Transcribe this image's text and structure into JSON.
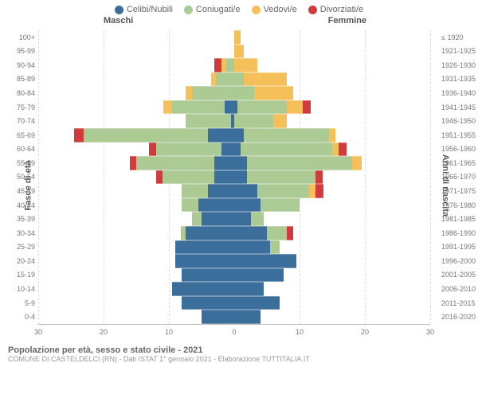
{
  "legend": [
    {
      "label": "Celibi/Nubili",
      "color": "#3b6e9a"
    },
    {
      "label": "Coniugati/e",
      "color": "#accb94"
    },
    {
      "label": "Vedovi/e",
      "color": "#f5c05a"
    },
    {
      "label": "Divorziati/e",
      "color": "#d13b3b"
    }
  ],
  "gender": {
    "male": "Maschi",
    "female": "Femmine"
  },
  "axes": {
    "left_title": "Fasce di età",
    "right_title": "Anni di nascita",
    "xmax": 30,
    "xticks": [
      30,
      20,
      10,
      0,
      10,
      20,
      30
    ],
    "grid_dashed_color": "#dddddd"
  },
  "footer": {
    "title": "Popolazione per età, sesso e stato civile - 2021",
    "sub": "COMUNE DI CASTELDELCI (RN) - Dati ISTAT 1° gennaio 2021 - Elaborazione TUTTITALIA.IT"
  },
  "rows": [
    {
      "age": "100+",
      "birth": "≤ 1920",
      "m": [
        0,
        0,
        0,
        0
      ],
      "f": [
        0,
        0,
        1,
        0
      ]
    },
    {
      "age": "95-99",
      "birth": "1921-1925",
      "m": [
        0,
        0,
        0,
        0
      ],
      "f": [
        0,
        0,
        1.5,
        0
      ]
    },
    {
      "age": "90-94",
      "birth": "1926-1930",
      "m": [
        0,
        1.2,
        0.7,
        1.1
      ],
      "f": [
        0,
        0,
        3.5,
        0
      ]
    },
    {
      "age": "85-89",
      "birth": "1931-1935",
      "m": [
        0,
        2.8,
        0.7,
        0
      ],
      "f": [
        0,
        1.5,
        6.5,
        0
      ]
    },
    {
      "age": "80-84",
      "birth": "1936-1940",
      "m": [
        0,
        6.5,
        1.0,
        0
      ],
      "f": [
        0,
        3.0,
        6.0,
        0
      ]
    },
    {
      "age": "75-79",
      "birth": "1941-1945",
      "m": [
        1.5,
        8.0,
        1.3,
        0
      ],
      "f": [
        0.5,
        7.5,
        2.5,
        1.2
      ]
    },
    {
      "age": "70-74",
      "birth": "1946-1950",
      "m": [
        0.5,
        7.0,
        0,
        0
      ],
      "f": [
        0,
        6.0,
        2.0,
        0
      ]
    },
    {
      "age": "65-69",
      "birth": "1951-1955",
      "m": [
        4.0,
        19.0,
        0,
        1.5
      ],
      "f": [
        1.5,
        13.0,
        1.0,
        0
      ]
    },
    {
      "age": "60-64",
      "birth": "1956-1960",
      "m": [
        2.0,
        10.0,
        0,
        1.0
      ],
      "f": [
        1.0,
        14.0,
        1.0,
        1.2
      ]
    },
    {
      "age": "55-59",
      "birth": "1961-1965",
      "m": [
        3.0,
        12.0,
        0,
        1.0
      ],
      "f": [
        2.0,
        16.0,
        1.5,
        0
      ]
    },
    {
      "age": "50-54",
      "birth": "1966-1970",
      "m": [
        3.0,
        8.0,
        0,
        1.0
      ],
      "f": [
        2.0,
        10.5,
        0,
        1.0
      ]
    },
    {
      "age": "45-49",
      "birth": "1971-1975",
      "m": [
        4.0,
        4.0,
        0,
        0
      ],
      "f": [
        3.5,
        8.0,
        1.0,
        1.2
      ]
    },
    {
      "age": "40-44",
      "birth": "1976-1980",
      "m": [
        5.5,
        2.5,
        0,
        0
      ],
      "f": [
        4.0,
        6.0,
        0,
        0
      ]
    },
    {
      "age": "35-39",
      "birth": "1981-1985",
      "m": [
        5.0,
        1.5,
        0,
        0
      ],
      "f": [
        2.5,
        2.0,
        0,
        0
      ]
    },
    {
      "age": "30-34",
      "birth": "1986-1990",
      "m": [
        7.5,
        0.7,
        0,
        0
      ],
      "f": [
        5.0,
        3.0,
        0,
        1.0
      ]
    },
    {
      "age": "25-29",
      "birth": "1991-1995",
      "m": [
        9.0,
        0,
        0,
        0
      ],
      "f": [
        5.5,
        1.5,
        0,
        0
      ]
    },
    {
      "age": "20-24",
      "birth": "1996-2000",
      "m": [
        9.0,
        0,
        0,
        0
      ],
      "f": [
        9.5,
        0,
        0,
        0
      ]
    },
    {
      "age": "15-19",
      "birth": "2001-2005",
      "m": [
        8.0,
        0,
        0,
        0
      ],
      "f": [
        7.5,
        0,
        0,
        0
      ]
    },
    {
      "age": "10-14",
      "birth": "2006-2010",
      "m": [
        9.5,
        0,
        0,
        0
      ],
      "f": [
        4.5,
        0,
        0,
        0
      ]
    },
    {
      "age": "5-9",
      "birth": "2011-2015",
      "m": [
        8.0,
        0,
        0,
        0
      ],
      "f": [
        7.0,
        0,
        0,
        0
      ]
    },
    {
      "age": "0-4",
      "birth": "2016-2020",
      "m": [
        5.0,
        0,
        0,
        0
      ],
      "f": [
        4.0,
        0,
        0,
        0
      ]
    }
  ]
}
